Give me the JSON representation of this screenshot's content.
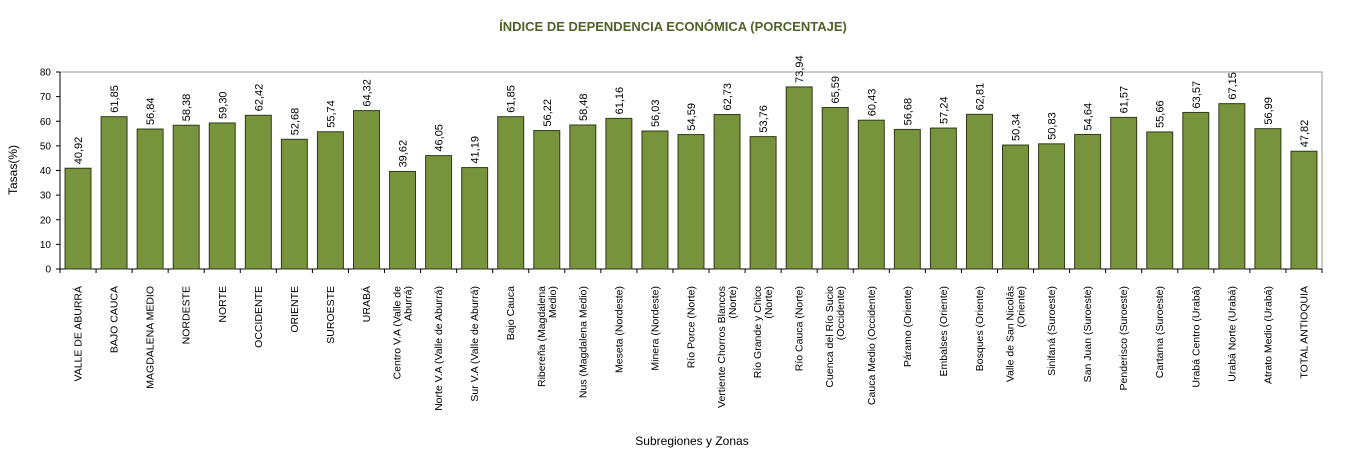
{
  "colors": {
    "bar": "#77933C",
    "bar_stroke": "#2F3B18",
    "title": "#4F6228",
    "grid": "#C8C8C8"
  },
  "chart_data": {
    "type": "bar",
    "title": "ÍNDICE DE DEPENDENCIA ECONÓMICA (PORCENTAJE)",
    "xlabel": "Subregiones y Zonas",
    "ylabel": "Tasas(%)",
    "ylim": [
      0,
      80
    ],
    "yticks": [
      "0",
      "10",
      "20",
      "30",
      "40",
      "50",
      "60",
      "70",
      "80"
    ],
    "grid": false,
    "legend": "none",
    "categories": [
      [
        "VALLE DE ABURRÁ"
      ],
      [
        "BAJO CAUCA"
      ],
      [
        "MAGDALENA MEDIO"
      ],
      [
        "NORDESTE"
      ],
      [
        "NORTE"
      ],
      [
        "OCCIDENTE"
      ],
      [
        "ORIENTE"
      ],
      [
        "SUROESTE"
      ],
      [
        "URABÁ"
      ],
      [
        "Centro V.A (Valle de",
        "Aburrá)"
      ],
      [
        "Norte V.A (Valle de Aburrá)"
      ],
      [
        "Sur V.A (Valle de Aburrá)"
      ],
      [
        "Bajo Cauca"
      ],
      [
        "Ribereña  (Magdalena",
        "Medio)"
      ],
      [
        "Nus  (Magdalena Medio)"
      ],
      [
        "Meseta  (Nordeste)"
      ],
      [
        "Minera  (Nordeste)"
      ],
      [
        "Río Porce   (Norte)"
      ],
      [
        "Vertiente Chorros Blancos",
        "(Norte)"
      ],
      [
        "Río Grande y Chico",
        "(Norte)"
      ],
      [
        "Río Cauca  (Norte)"
      ],
      [
        "Cuenca del Río Sucio",
        "(Occidente)"
      ],
      [
        "Cauca Medio  (Occidente)"
      ],
      [
        "Páramo  (Oriente)"
      ],
      [
        "Embalses  (Oriente)"
      ],
      [
        "Bosques  (Oriente)"
      ],
      [
        "Valle de San Nicolás",
        "(Oriente)"
      ],
      [
        "Sinifaná (Suroeste)"
      ],
      [
        "San Juan  (Suroeste)"
      ],
      [
        "Penderisco (Suroeste)"
      ],
      [
        "Cartama  (Suroeste)"
      ],
      [
        "Urabá Centro  (Urabá)"
      ],
      [
        "Urabá Norte  (Urabá)"
      ],
      [
        "Atrato Medio  (Urabá)"
      ],
      [
        "TOTAL ANTIOQUIA"
      ]
    ],
    "values": [
      40.92,
      61.85,
      56.84,
      58.38,
      59.3,
      62.42,
      52.68,
      55.74,
      64.32,
      39.62,
      46.05,
      41.19,
      61.85,
      56.22,
      58.48,
      61.16,
      56.03,
      54.59,
      62.73,
      53.76,
      73.94,
      65.59,
      60.43,
      56.68,
      57.24,
      62.81,
      50.34,
      50.83,
      54.64,
      61.57,
      55.66,
      63.57,
      67.15,
      56.99,
      47.82
    ],
    "value_labels": [
      "40,92",
      "61,85",
      "56,84",
      "58,38",
      "59,30",
      "62,42",
      "52,68",
      "55,74",
      "64,32",
      "39,62",
      "46,05",
      "41,19",
      "61,85",
      "56,22",
      "58,48",
      "61,16",
      "56,03",
      "54,59",
      "62,73",
      "53,76",
      "73,94",
      "65,59",
      "60,43",
      "56,68",
      "57,24",
      "62,81",
      "50,34",
      "50,83",
      "54,64",
      "61,57",
      "55,66",
      "63,57",
      "67,15",
      "56,99",
      "47,82"
    ]
  }
}
